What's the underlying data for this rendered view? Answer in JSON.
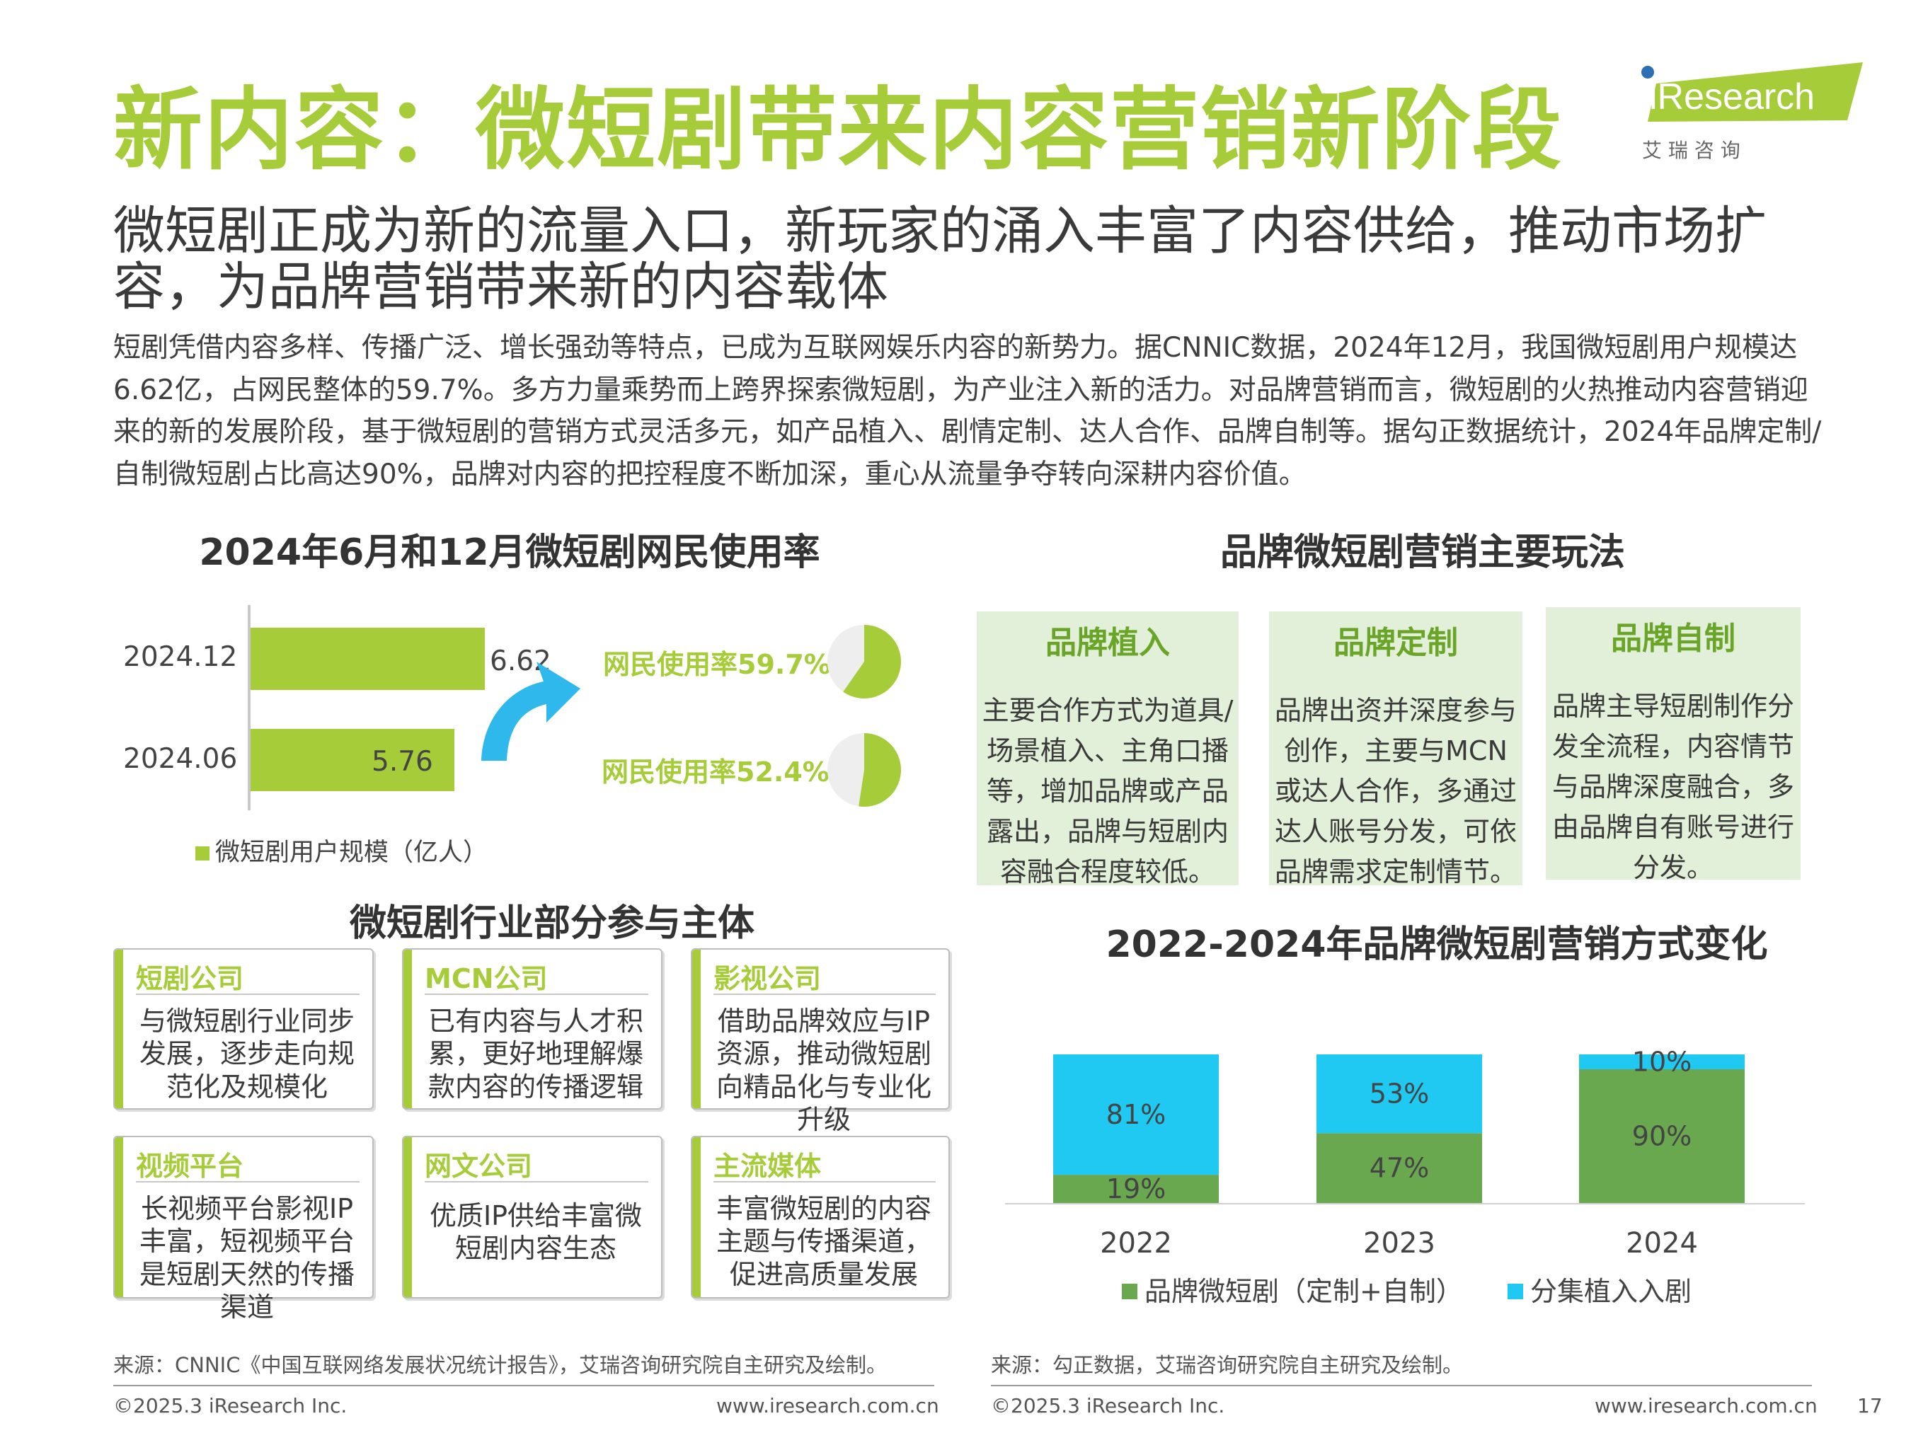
{
  "header": {
    "title": "新内容：微短剧带来内容营销新阶段",
    "logo_text": "iResearch",
    "logo_cn": "艾 瑞 咨 询",
    "subtitle": "微短剧正成为新的流量入口，新玩家的涌入丰富了内容供给，推动市场扩容，为品牌营销带来新的内容载体",
    "intro": "短剧凭借内容多样、传播广泛、增长强劲等特点，已成为互联网娱乐内容的新势力。据CNNIC数据，2024年12月，我国微短剧用户规模达6.62亿，占网民整体的59.7%。多方力量乘势而上跨界探索微短剧，为产业注入新的活力。对品牌营销而言，微短剧的火热推动内容营销迎来的新的发展阶段，基于微短剧的营销方式灵活多元，如产品植入、剧情定制、达人合作、品牌自制等。据勾正数据统计，2024年品牌定制/自制微短剧占比高达90%，品牌对内容的把控程度不断加深，重心从流量争夺转向深耕内容价值。"
  },
  "colors": {
    "green": "#a6cd39",
    "dark_green": "#6aa84f",
    "cyan": "#1fc9f2",
    "arrow": "#2eb8ec",
    "box_green": "#e2f0d9"
  },
  "chart_data": [
    {
      "type": "bar",
      "orientation": "horizontal",
      "title": "2024年6月和12月微短剧网民使用率",
      "categories": [
        "2024.12",
        "2024.06"
      ],
      "series": [
        {
          "name": "微短剧用户规模（亿人）",
          "values": [
            6.62,
            5.76
          ]
        }
      ],
      "value_labels": [
        "6.62",
        "5.76"
      ],
      "annotations": [
        {
          "category": "2024.12",
          "label": "网民使用率59.7%",
          "rate": 59.7
        },
        {
          "category": "2024.06",
          "label": "网民使用率52.4%",
          "rate": 52.4
        }
      ]
    },
    {
      "type": "bar",
      "stacked": true,
      "title": "2022-2024年品牌微短剧营销方式变化",
      "categories": [
        "2022",
        "2023",
        "2024"
      ],
      "series": [
        {
          "name": "品牌微短剧（定制+自制）",
          "values": [
            19,
            47,
            90
          ],
          "labels": [
            "19%",
            "47%",
            "90%"
          ]
        },
        {
          "name": "分集植入入剧",
          "values": [
            81,
            53,
            10
          ],
          "labels": [
            "81%",
            "53%",
            "10%"
          ]
        }
      ],
      "ylim": [
        0,
        100
      ]
    }
  ],
  "methods": {
    "title": "品牌微短剧营销主要玩法",
    "items": [
      {
        "title": "品牌植入",
        "body": "主要合作方式为道具/场景植入、主角口播等，增加品牌或产品露出，品牌与短剧内容融合程度较低。"
      },
      {
        "title": "品牌定制",
        "body": "品牌出资并深度参与创作，主要与MCN或达人合作，多通过达人账号分发，可依品牌需求定制情节。"
      },
      {
        "title": "品牌自制",
        "body": "品牌主导短剧制作分发全流程，内容情节与品牌深度融合，多由品牌自有账号进行分发。"
      }
    ]
  },
  "participants": {
    "title": "微短剧行业部分参与主体",
    "cards": [
      {
        "title": "短剧公司",
        "body": "与微短剧行业同步发展，逐步走向规范化及规模化"
      },
      {
        "title": "MCN公司",
        "body": "已有内容与人才积累，更好地理解爆款内容的传播逻辑"
      },
      {
        "title": "影视公司",
        "body": "借助品牌效应与IP资源，推动微短剧向精品化与专业化升级"
      },
      {
        "title": "视频平台",
        "body": "长视频平台影视IP丰富，短视频平台是短剧天然的传播渠道"
      },
      {
        "title": "网文公司",
        "body": "优质IP供给丰富微短剧内容生态"
      },
      {
        "title": "主流媒体",
        "body": "丰富微短剧的内容主题与传播渠道，促进高质量发展"
      }
    ]
  },
  "footer": {
    "source_left": "来源：CNNIC《中国互联网络发展状况统计报告》，艾瑞咨询研究院自主研究及绘制。",
    "source_right": "来源：勾正数据，艾瑞咨询研究院自主研究及绘制。",
    "copyright": "©2025.3 iResearch Inc.",
    "website": "www.iresearch.com.cn",
    "page": "17"
  }
}
